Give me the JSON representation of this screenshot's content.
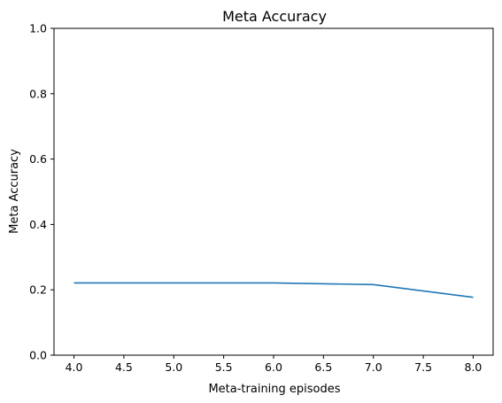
{
  "chart_data": {
    "type": "line",
    "title": "Meta Accuracy",
    "xlabel": "Meta-training episodes",
    "ylabel": "Meta Accuracy",
    "xlim": [
      3.8,
      8.2
    ],
    "ylim": [
      0.0,
      1.0
    ],
    "grid": false,
    "x_ticks": [
      "4.0",
      "4.5",
      "5.0",
      "5.5",
      "6.0",
      "6.5",
      "7.0",
      "7.5",
      "8.0"
    ],
    "y_ticks": [
      "0.0",
      "0.2",
      "0.4",
      "0.6",
      "0.8",
      "1.0"
    ],
    "series": [
      {
        "color": "#1f77b4",
        "x": [
          4,
          5,
          6,
          7,
          8
        ],
        "y": [
          0.221,
          0.221,
          0.221,
          0.216,
          0.177
        ]
      }
    ]
  }
}
